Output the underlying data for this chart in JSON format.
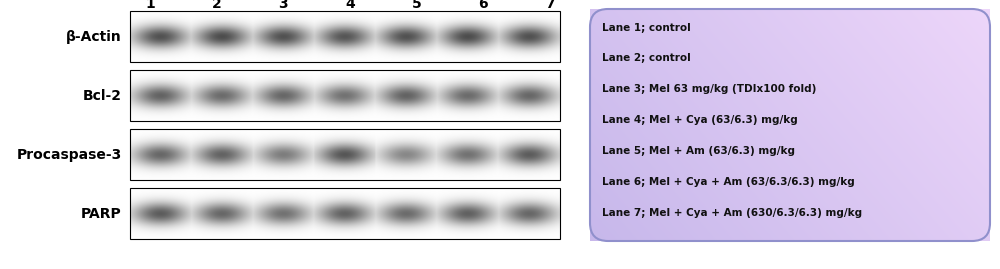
{
  "lane_labels": [
    "1",
    "2",
    "3",
    "4",
    "5",
    "6",
    "7"
  ],
  "band_labels": [
    "PARP",
    "Procaspase-3",
    "Bcl-2",
    "β-Actin"
  ],
  "legend_lines": [
    "Lane 1; control",
    "Lane 2; control",
    "Lane 3; Mel 63 mg/kg (TDIx100 fold)",
    "Lane 4; Mel + Cya (63/6.3) mg/kg",
    "Lane 5; Mel + Am (63/6.3) mg/kg",
    "Lane 6; Mel + Cya + Am (63/6.3/6.3) mg/kg",
    "Lane 7; Mel + Cya + Am (630/6.3/6.3) mg/kg"
  ],
  "fig_width": 10.0,
  "fig_height": 2.69,
  "dpi": 100,
  "bg_color": "#ffffff",
  "box_gradient_left": "#c8b8e8",
  "box_gradient_right": "#e8d8f8",
  "box_color_top": "#d4c0f0",
  "box_color_bottom": "#c0b0e0",
  "legend_font_size": 7.5,
  "label_font_size": 10,
  "lane_label_font_size": 10
}
